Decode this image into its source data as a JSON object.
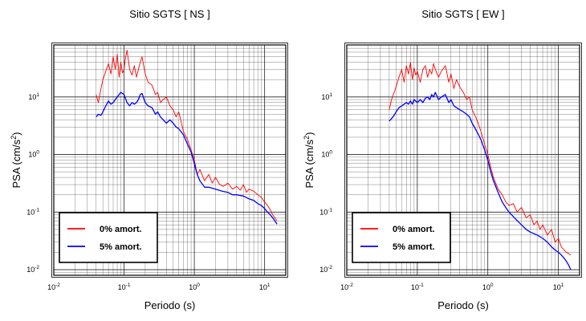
{
  "colors": {
    "undamped": "#ff0000",
    "damped": "#0000ff",
    "grid": "#000000",
    "background": "#ffffff"
  },
  "chart_data": [
    {
      "type": "line",
      "title": "Sitio SGTS [ NS ]",
      "xlabel": "Periodo (s)",
      "ylabel_main": "PSA (cm/s",
      "ylabel_sup": "2",
      "ylabel_end": ")",
      "xscale": "log",
      "yscale": "log",
      "xlim": [
        0.01,
        20
      ],
      "ylim": [
        0.008,
        80
      ],
      "xticks": [
        {
          "base": "10",
          "exp": "-2"
        },
        {
          "base": "10",
          "exp": "-1"
        },
        {
          "base": "10",
          "exp": "0"
        },
        {
          "base": "10",
          "exp": "1"
        }
      ],
      "yticks": [
        {
          "base": "10",
          "exp": "-2"
        },
        {
          "base": "10",
          "exp": "-1"
        },
        {
          "base": "10",
          "exp": "0"
        },
        {
          "base": "10",
          "exp": "1"
        }
      ],
      "grid": true,
      "legend_position": "bottom-left",
      "series": [
        {
          "name": "0% amort.",
          "color": "#ff0000",
          "x": [
            0.04,
            0.043,
            0.047,
            0.05,
            0.055,
            0.06,
            0.065,
            0.07,
            0.075,
            0.08,
            0.085,
            0.09,
            0.095,
            0.1,
            0.105,
            0.11,
            0.12,
            0.13,
            0.14,
            0.15,
            0.16,
            0.17,
            0.18,
            0.2,
            0.22,
            0.25,
            0.28,
            0.3,
            0.33,
            0.36,
            0.4,
            0.45,
            0.5,
            0.55,
            0.6,
            0.7,
            0.8,
            0.9,
            1.0,
            1.1,
            1.2,
            1.4,
            1.6,
            1.8,
            2.0,
            2.3,
            2.6,
            3.0,
            3.5,
            4.0,
            4.5,
            5.0,
            5.5,
            6.0,
            7.0,
            8.0,
            9.0,
            10.0,
            11.0,
            12.0,
            13.0,
            15.0
          ],
          "y": [
            11,
            8,
            14,
            20,
            28,
            38,
            25,
            50,
            30,
            55,
            22,
            40,
            26,
            30,
            48,
            65,
            30,
            24,
            35,
            22,
            30,
            40,
            50,
            25,
            18,
            16,
            11,
            12,
            8,
            9,
            10,
            7,
            6,
            4.5,
            5.5,
            2.5,
            1.8,
            1.2,
            0.8,
            0.45,
            0.55,
            0.35,
            0.45,
            0.32,
            0.4,
            0.3,
            0.28,
            0.32,
            0.25,
            0.28,
            0.24,
            0.3,
            0.22,
            0.25,
            0.23,
            0.2,
            0.18,
            0.15,
            0.13,
            0.11,
            0.09,
            0.07
          ]
        },
        {
          "name": "5% amort.",
          "color": "#0000ff",
          "x": [
            0.04,
            0.043,
            0.047,
            0.05,
            0.055,
            0.06,
            0.065,
            0.07,
            0.075,
            0.08,
            0.085,
            0.09,
            0.1,
            0.11,
            0.12,
            0.13,
            0.14,
            0.15,
            0.16,
            0.17,
            0.18,
            0.2,
            0.22,
            0.25,
            0.28,
            0.3,
            0.33,
            0.36,
            0.4,
            0.45,
            0.5,
            0.55,
            0.6,
            0.7,
            0.8,
            0.9,
            1.0,
            1.1,
            1.2,
            1.4,
            1.6,
            1.8,
            2.0,
            2.5,
            3.0,
            3.5,
            4.0,
            5.0,
            6.0,
            7.0,
            8.0,
            9.0,
            10.0,
            11.0,
            12.0,
            13.0,
            14.0,
            15.0
          ],
          "y": [
            4.5,
            5.0,
            4.8,
            5.5,
            7,
            8.5,
            7.5,
            8,
            9,
            10,
            11,
            12,
            11,
            8,
            7,
            8,
            7.5,
            8,
            9,
            11,
            11.5,
            8,
            7,
            6.5,
            5,
            5.5,
            4.5,
            4,
            3.5,
            4,
            3.5,
            3,
            2.8,
            2.2,
            1.5,
            1.1,
            0.7,
            0.45,
            0.35,
            0.27,
            0.27,
            0.26,
            0.25,
            0.23,
            0.22,
            0.2,
            0.2,
            0.19,
            0.17,
            0.16,
            0.14,
            0.13,
            0.115,
            0.1,
            0.09,
            0.08,
            0.07,
            0.062
          ]
        }
      ]
    },
    {
      "type": "line",
      "title": "Sitio SGTS [ EW ]",
      "xlabel": "Periodo (s)",
      "ylabel_main": "PSA (cm/s",
      "ylabel_sup": "2",
      "ylabel_end": ")",
      "xscale": "log",
      "yscale": "log",
      "xlim": [
        0.01,
        20
      ],
      "ylim": [
        0.008,
        80
      ],
      "xticks": [
        {
          "base": "10",
          "exp": "-2"
        },
        {
          "base": "10",
          "exp": "-1"
        },
        {
          "base": "10",
          "exp": "0"
        },
        {
          "base": "10",
          "exp": "1"
        }
      ],
      "yticks": [
        {
          "base": "10",
          "exp": "-2"
        },
        {
          "base": "10",
          "exp": "-1"
        },
        {
          "base": "10",
          "exp": "0"
        },
        {
          "base": "10",
          "exp": "1"
        }
      ],
      "grid": true,
      "legend_position": "bottom-left",
      "series": [
        {
          "name": "0% amort.",
          "color": "#ff0000",
          "x": [
            0.04,
            0.043,
            0.047,
            0.05,
            0.055,
            0.06,
            0.065,
            0.07,
            0.075,
            0.08,
            0.085,
            0.09,
            0.095,
            0.1,
            0.11,
            0.12,
            0.13,
            0.14,
            0.15,
            0.16,
            0.17,
            0.18,
            0.2,
            0.22,
            0.25,
            0.28,
            0.3,
            0.33,
            0.36,
            0.4,
            0.45,
            0.5,
            0.55,
            0.6,
            0.7,
            0.8,
            0.9,
            1.0,
            1.1,
            1.2,
            1.4,
            1.6,
            1.8,
            2.0,
            2.3,
            2.6,
            3.0,
            3.5,
            4.0,
            4.5,
            5.0,
            5.5,
            6.0,
            7.0,
            8.0,
            9.0,
            10.0,
            11.0,
            12.0,
            13.0,
            15.0
          ],
          "y": [
            6,
            9,
            12,
            15,
            22,
            30,
            18,
            35,
            25,
            40,
            20,
            32,
            24,
            28,
            18,
            30,
            35,
            22,
            30,
            25,
            38,
            30,
            22,
            28,
            35,
            18,
            25,
            14,
            20,
            15,
            12,
            9,
            10,
            6,
            4,
            2.5,
            1.5,
            1.0,
            0.6,
            0.4,
            0.25,
            0.2,
            0.15,
            0.13,
            0.14,
            0.1,
            0.12,
            0.08,
            0.09,
            0.06,
            0.07,
            0.05,
            0.06,
            0.04,
            0.05,
            0.03,
            0.035,
            0.025,
            0.022,
            0.02,
            0.018
          ]
        },
        {
          "name": "5% amort.",
          "color": "#0000ff",
          "x": [
            0.04,
            0.043,
            0.047,
            0.05,
            0.055,
            0.06,
            0.065,
            0.07,
            0.075,
            0.08,
            0.085,
            0.09,
            0.1,
            0.11,
            0.12,
            0.13,
            0.14,
            0.15,
            0.16,
            0.17,
            0.18,
            0.2,
            0.22,
            0.25,
            0.28,
            0.3,
            0.33,
            0.36,
            0.4,
            0.45,
            0.5,
            0.55,
            0.6,
            0.7,
            0.8,
            0.9,
            1.0,
            1.1,
            1.2,
            1.4,
            1.6,
            1.8,
            2.0,
            2.5,
            3.0,
            3.5,
            4.0,
            5.0,
            6.0,
            7.0,
            8.0,
            9.0,
            10.0,
            11.0,
            12.0,
            13.0,
            14.0,
            15.0
          ],
          "y": [
            3.8,
            4.2,
            4.8,
            5.5,
            6.5,
            7,
            7.5,
            8,
            7.5,
            8.5,
            7.5,
            9,
            8,
            9,
            8,
            9.5,
            10,
            9,
            11,
            10,
            12,
            9,
            10,
            11,
            8,
            9,
            7,
            6.5,
            6,
            5.5,
            5,
            4.5,
            3.5,
            2.5,
            1.8,
            1.2,
            0.8,
            0.5,
            0.35,
            0.22,
            0.15,
            0.12,
            0.1,
            0.075,
            0.06,
            0.05,
            0.045,
            0.04,
            0.035,
            0.03,
            0.025,
            0.022,
            0.02,
            0.018,
            0.016,
            0.014,
            0.012,
            0.01
          ]
        }
      ]
    }
  ]
}
